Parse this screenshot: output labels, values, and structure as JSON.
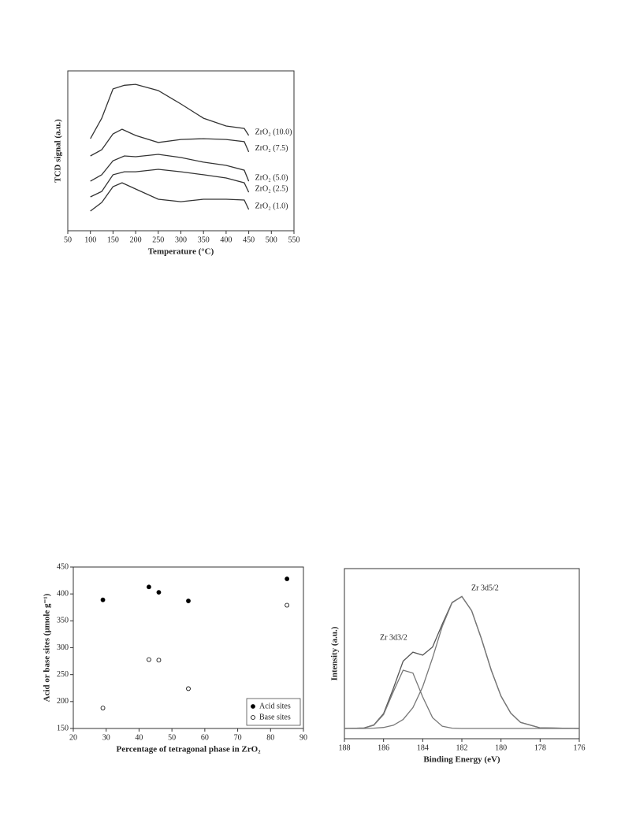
{
  "chart_data": [
    {
      "type": "line",
      "xlabel": "Temperature (°C)",
      "ylabel": "TCD signal (a.u.)",
      "xlim": [
        50,
        550
      ],
      "xticks": [
        50,
        100,
        150,
        200,
        250,
        300,
        350,
        400,
        450,
        500,
        550
      ],
      "ylim": [
        0,
        100
      ],
      "series": [
        {
          "name": "ZrO₂ (10.0)",
          "color": "#333333",
          "x": [
            100,
            125,
            150,
            175,
            200,
            250,
            300,
            350,
            400,
            440,
            450
          ],
          "values": [
            57.6,
            70.4,
            88.7,
            91,
            91.6,
            87.7,
            79.3,
            70.4,
            65.5,
            64,
            59.6
          ]
        },
        {
          "name": "ZrO₂ (7.5)",
          "color": "#333333",
          "x": [
            100,
            125,
            150,
            170,
            200,
            250,
            300,
            350,
            400,
            440,
            450
          ],
          "values": [
            46.8,
            50.7,
            60.6,
            63.5,
            59.6,
            55.2,
            57.1,
            57.6,
            57.1,
            55.7,
            49.3
          ]
        },
        {
          "name": "ZrO₂ (5.0)",
          "color": "#333333",
          "x": [
            100,
            125,
            150,
            175,
            200,
            250,
            300,
            350,
            400,
            440,
            450
          ],
          "values": [
            31,
            35,
            43.8,
            46.8,
            46.3,
            47.8,
            45.8,
            42.9,
            40.9,
            37.9,
            31
          ]
        },
        {
          "name": "ZrO₂ (2.5)",
          "color": "#333333",
          "x": [
            100,
            125,
            150,
            175,
            200,
            250,
            300,
            350,
            400,
            440,
            450
          ],
          "values": [
            21.2,
            24.6,
            35,
            36.9,
            36.9,
            38.4,
            36.9,
            35,
            33,
            30,
            24.1
          ]
        },
        {
          "name": "ZrO₂ (1.0)",
          "color": "#333333",
          "x": [
            100,
            125,
            150,
            170,
            200,
            250,
            300,
            350,
            400,
            440,
            450
          ],
          "values": [
            12.3,
            17.7,
            27.6,
            30,
            26.1,
            19.7,
            18.2,
            19.7,
            19.7,
            19.2,
            13.3
          ]
        }
      ]
    },
    {
      "type": "scatter",
      "xlabel": "Percentage of tetragonal phase in ZrO₂",
      "ylabel": "Acid or base sites (μmole g⁻¹)",
      "xlim": [
        20,
        90
      ],
      "xticks": [
        20,
        30,
        40,
        50,
        60,
        70,
        80,
        90
      ],
      "ylim": [
        150,
        450
      ],
      "yticks": [
        150,
        200,
        250,
        300,
        350,
        400,
        450
      ],
      "legend": "lower right",
      "series": [
        {
          "name": "Acid sites",
          "color": "#000000",
          "filled": true,
          "x": [
            29,
            43,
            46,
            55,
            85
          ],
          "values": [
            389,
            413,
            403,
            387,
            428
          ]
        },
        {
          "name": "Base sites",
          "color": "#000000",
          "filled": false,
          "x": [
            29,
            43,
            46,
            55,
            85
          ],
          "values": [
            188,
            278,
            277,
            224,
            379
          ]
        }
      ]
    },
    {
      "type": "line",
      "xlabel": "Binding Energy (eV)",
      "ylabel": "Intensity (a.u.)",
      "xlim": [
        188,
        176
      ],
      "xticks": [
        188,
        186,
        184,
        182,
        180,
        178,
        176
      ],
      "ylim": [
        0,
        100
      ],
      "annotations": [
        "Zr 3d5/2",
        "Zr 3d3/2"
      ],
      "series": [
        {
          "color": "#555555",
          "x": [
            188,
            187,
            186.5,
            186,
            185.5,
            185,
            184.5,
            184,
            183.5,
            183,
            182.5,
            182,
            181.5,
            181,
            180.5,
            180,
            179.5,
            179,
            178,
            176
          ],
          "values": [
            6,
            6.3,
            8.1,
            14.8,
            29.6,
            45.6,
            50.9,
            49.1,
            53.9,
            67.4,
            80.1,
            83.6,
            75.3,
            58.8,
            40.3,
            25,
            15,
            9.6,
            6.4,
            6
          ]
        },
        {
          "color": "#777777",
          "x": [
            188,
            187,
            186.5,
            186,
            185.5,
            185,
            184.5,
            184,
            183.5,
            183,
            182.5,
            182,
            181.5,
            181,
            180.5,
            180,
            179.5,
            179,
            178,
            176
          ],
          "values": [
            6,
            6,
            6.2,
            6.6,
            7.9,
            11.3,
            18.3,
            30.5,
            47.5,
            66.1,
            79.9,
            83.6,
            75.3,
            58.8,
            40.3,
            25,
            15,
            9.6,
            6.4,
            6
          ]
        },
        {
          "color": "#777777",
          "x": [
            188,
            187,
            186.5,
            186,
            185.5,
            185,
            184.5,
            184,
            183.5,
            183,
            182.5,
            182,
            181.5,
            181,
            180.5,
            180,
            179.5,
            179,
            178,
            176
          ],
          "values": [
            6,
            6.3,
            7.9,
            14.2,
            27.7,
            40.3,
            38.6,
            24.6,
            12.4,
            7.3,
            6.2,
            6,
            6,
            6,
            6,
            6,
            6,
            6,
            6,
            6
          ]
        }
      ]
    }
  ]
}
